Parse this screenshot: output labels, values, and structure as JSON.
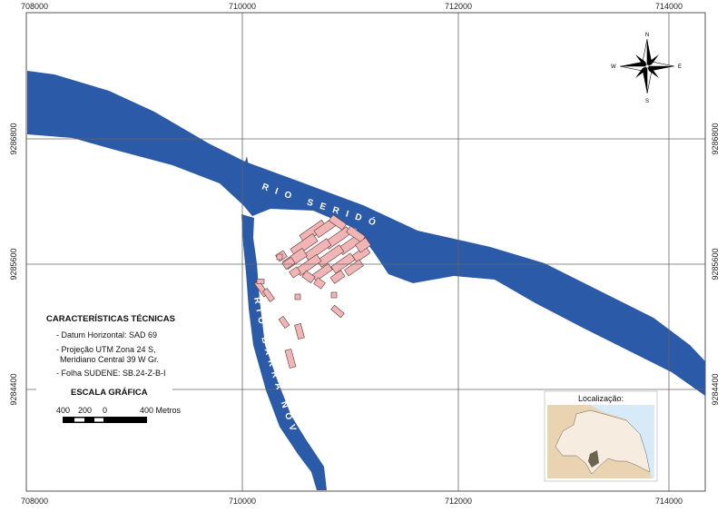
{
  "colors": {
    "river": "#2b5aa8",
    "urban": "#f2b5b5",
    "inset_land": "#f5e9d9",
    "inset_sea": "#d6ebf7",
    "inset_highlight": "#6e6250"
  },
  "grid": {
    "x_labels": [
      "708000",
      "710000",
      "712000",
      "714000"
    ],
    "y_labels": [
      "9286800",
      "9285600",
      "9284400"
    ]
  },
  "rivers": {
    "serido": "RIO SERIDÓ",
    "barra_nova": "RIO BARRA NOVA"
  },
  "compass": {
    "icon": "compass-rose-icon",
    "n": "N",
    "s": "S",
    "e": "E",
    "w": "W"
  },
  "legend": {
    "title": "CARACTERÍSTICAS TÉCNICAS",
    "items": [
      "- Datum Horizontal: SAD 69",
      "- Projeção UTM Zona 24 S,",
      "Meridiano Central 39 W Gr.",
      "- Folha SUDENE: SB.24-Z-B-I"
    ]
  },
  "scale": {
    "title": "ESCALA GRÁFICA",
    "labels": [
      "400",
      "200",
      "0",
      "400 Metros"
    ]
  },
  "inset": {
    "title": "Localização:"
  }
}
